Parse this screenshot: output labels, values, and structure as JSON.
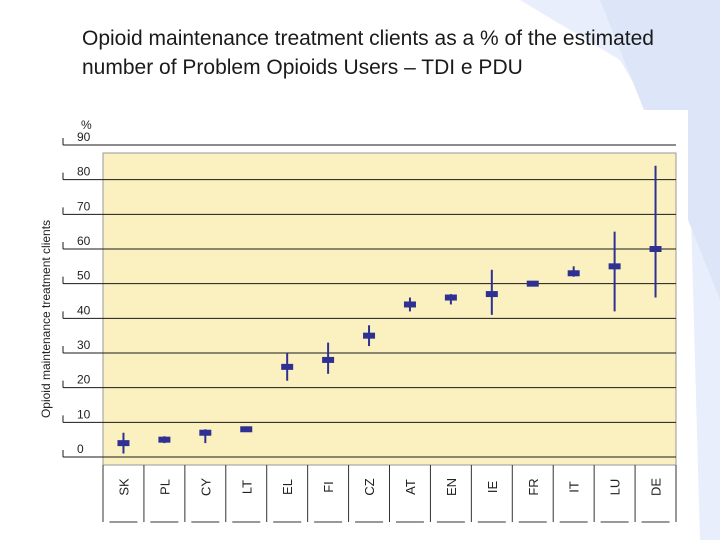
{
  "slide": {
    "title": "Opioid maintenance treatment clients as a % of the estimated number of Problem Opioids Users – TDI e PDU"
  },
  "chart_data": {
    "type": "range",
    "title": "Opioid maintenance treatment clients as a % of the estimated number of Problem Opioids Users – TDI e PDU",
    "ylabel": "Opioid maintenance treatment clients",
    "yunit": "%",
    "ylim": [
      0,
      90
    ],
    "yticks": [
      0,
      10,
      20,
      30,
      40,
      50,
      60,
      70,
      80,
      90
    ],
    "categories": [
      "SK",
      "PL",
      "CY",
      "LT",
      "EL",
      "FI",
      "CZ",
      "AT",
      "EN",
      "IE",
      "FR",
      "IT",
      "LU",
      "DE"
    ],
    "central": [
      4,
      5,
      7,
      8,
      26,
      28,
      35,
      44,
      46,
      47,
      50,
      53,
      55,
      60
    ],
    "low": [
      1,
      4,
      4,
      8,
      22,
      24,
      32,
      42,
      44,
      41,
      50,
      52,
      42,
      46
    ],
    "high": [
      7,
      6,
      8,
      8,
      30,
      33,
      38,
      46,
      47,
      54,
      50,
      55,
      65,
      84
    ],
    "colors": {
      "marker": "#2e3192",
      "plot_bg": "#fbf0c0",
      "grid": "#1a1a1a",
      "band": "#e6ecfa"
    }
  }
}
